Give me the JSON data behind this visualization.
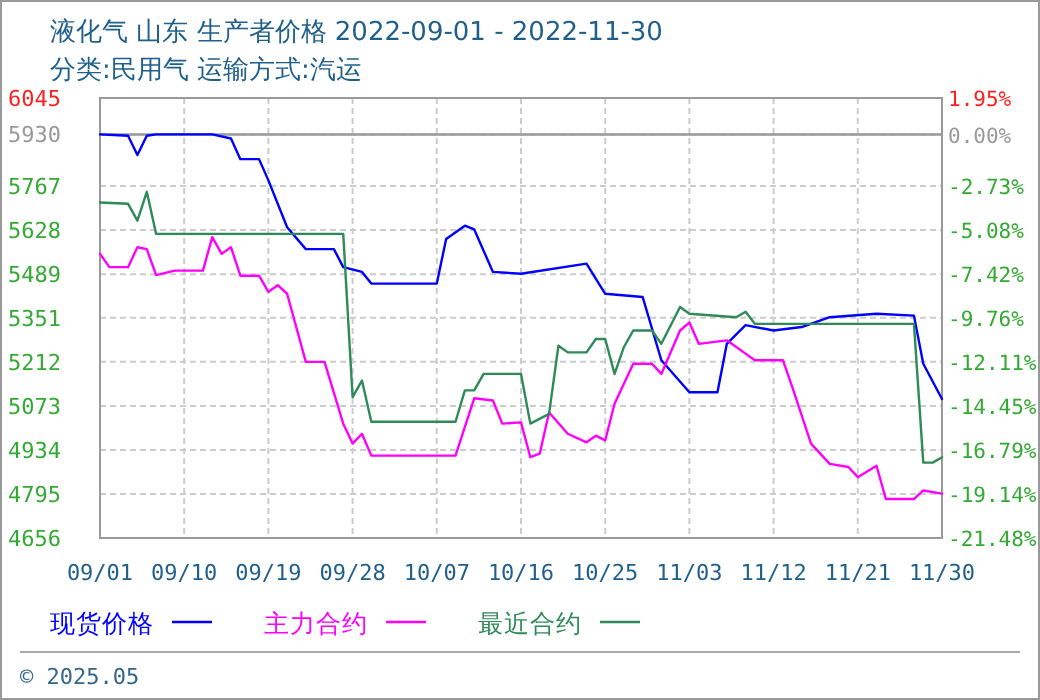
{
  "chart_data": {
    "type": "line",
    "title": "液化气 山东 生产者价格 2022-09-01 - 2022-11-30",
    "subtitle": "分类:民用气 运输方式:汽运",
    "annotations": [
      "© 2025.05"
    ],
    "xlim": [
      "2022-09-01",
      "2022-11-30"
    ],
    "xticks": [
      {
        "value": "2022-09-01",
        "label": "09/01"
      },
      {
        "value": "2022-09-10",
        "label": "09/10"
      },
      {
        "value": "2022-09-19",
        "label": "09/19"
      },
      {
        "value": "2022-09-28",
        "label": "09/28"
      },
      {
        "value": "2022-10-07",
        "label": "10/07"
      },
      {
        "value": "2022-10-16",
        "label": "10/16"
      },
      {
        "value": "2022-10-25",
        "label": "10/25"
      },
      {
        "value": "2022-11-03",
        "label": "11/03"
      },
      {
        "value": "2022-11-12",
        "label": "11/12"
      },
      {
        "value": "2022-11-21",
        "label": "11/21"
      },
      {
        "value": "2022-11-30",
        "label": "11/30"
      }
    ],
    "ylim": [
      4656,
      6045
    ],
    "yticks": [
      4656,
      4795,
      4934,
      5073,
      5212,
      5351,
      5489,
      5628,
      5767,
      5930,
      6045
    ],
    "y2lim": [
      -21.48,
      1.95
    ],
    "y2ticks": [
      {
        "value": -21.48,
        "label": "-21.48%"
      },
      {
        "value": -19.14,
        "label": "-19.14%"
      },
      {
        "value": -16.79,
        "label": "-16.79%"
      },
      {
        "value": -14.45,
        "label": "-14.45%"
      },
      {
        "value": -12.11,
        "label": "-12.11%"
      },
      {
        "value": -9.76,
        "label": "-9.76%"
      },
      {
        "value": -7.42,
        "label": "-7.42%"
      },
      {
        "value": -5.08,
        "label": "-5.08%"
      },
      {
        "value": -2.73,
        "label": "-2.73%"
      },
      {
        "value": 0,
        "label": "0.00%"
      },
      {
        "value": 1.95,
        "label": "1.95%"
      }
    ],
    "ref_lines": [
      {
        "axis": "y",
        "value": 5930,
        "color": "#999999"
      }
    ],
    "grid": true,
    "legend": "bottom",
    "series": [
      {
        "name": "现货价格",
        "color": "#0000ff",
        "x": [
          "2022-09-01",
          "2022-09-04",
          "2022-09-05",
          "2022-09-06",
          "2022-09-07",
          "2022-09-13",
          "2022-09-15",
          "2022-09-16",
          "2022-09-18",
          "2022-09-19",
          "2022-09-21",
          "2022-09-23",
          "2022-09-26",
          "2022-09-27",
          "2022-09-29",
          "2022-09-30",
          "2022-10-07",
          "2022-10-08",
          "2022-10-10",
          "2022-10-11",
          "2022-10-13",
          "2022-10-16",
          "2022-10-23",
          "2022-10-25",
          "2022-10-29",
          "2022-10-31",
          "2022-11-03",
          "2022-11-06",
          "2022-11-07",
          "2022-11-09",
          "2022-11-12",
          "2022-11-15",
          "2022-11-18",
          "2022-11-23",
          "2022-11-27",
          "2022-11-28",
          "2022-11-30"
        ],
        "values": [
          5930,
          5926,
          5865,
          5926,
          5930,
          5930,
          5917,
          5852,
          5852,
          5785,
          5637,
          5568,
          5568,
          5511,
          5496,
          5459,
          5459,
          5600,
          5642,
          5630,
          5496,
          5490,
          5522,
          5427,
          5417,
          5217,
          5116,
          5116,
          5269,
          5328,
          5311,
          5322,
          5353,
          5364,
          5358,
          5206,
          5095
        ]
      },
      {
        "name": "主力合约",
        "color": "#ff00ff",
        "x": [
          "2022-09-01",
          "2022-09-02",
          "2022-09-04",
          "2022-09-05",
          "2022-09-06",
          "2022-09-07",
          "2022-09-09",
          "2022-09-12",
          "2022-09-13",
          "2022-09-14",
          "2022-09-15",
          "2022-09-16",
          "2022-09-18",
          "2022-09-19",
          "2022-09-20",
          "2022-09-21",
          "2022-09-23",
          "2022-09-25",
          "2022-09-27",
          "2022-09-28",
          "2022-09-29",
          "2022-09-30",
          "2022-10-09",
          "2022-10-11",
          "2022-10-13",
          "2022-10-14",
          "2022-10-16",
          "2022-10-17",
          "2022-10-18",
          "2022-10-19",
          "2022-10-21",
          "2022-10-23",
          "2022-10-24",
          "2022-10-25",
          "2022-10-26",
          "2022-10-28",
          "2022-10-30",
          "2022-10-31",
          "2022-11-02",
          "2022-11-03",
          "2022-11-04",
          "2022-11-07",
          "2022-11-09",
          "2022-11-10",
          "2022-11-13",
          "2022-11-14",
          "2022-11-16",
          "2022-11-18",
          "2022-11-20",
          "2022-11-21",
          "2022-11-23",
          "2022-11-24",
          "2022-11-27",
          "2022-11-28",
          "2022-11-30"
        ],
        "values": [
          5553,
          5511,
          5511,
          5574,
          5568,
          5486,
          5500,
          5500,
          5606,
          5553,
          5574,
          5484,
          5484,
          5433,
          5454,
          5427,
          5212,
          5212,
          5017,
          4954,
          4985,
          4916,
          4916,
          5097,
          5090,
          5017,
          5021,
          4911,
          4922,
          5052,
          4985,
          4958,
          4979,
          4964,
          5080,
          5206,
          5206,
          5174,
          5311,
          5336,
          5269,
          5280,
          5238,
          5217,
          5217,
          5132,
          4954,
          4890,
          4880,
          4848,
          4884,
          4779,
          4779,
          4806,
          4796
        ]
      },
      {
        "name": "最近合约",
        "color": "#2e8b57",
        "x": [
          "2022-09-01",
          "2022-09-04",
          "2022-09-05",
          "2022-09-06",
          "2022-09-07",
          "2022-09-27",
          "2022-09-28",
          "2022-09-29",
          "2022-09-30",
          "2022-10-09",
          "2022-10-10",
          "2022-10-11",
          "2022-10-12",
          "2022-10-16",
          "2022-10-17",
          "2022-10-19",
          "2022-10-20",
          "2022-10-21",
          "2022-10-23",
          "2022-10-24",
          "2022-10-25",
          "2022-10-26",
          "2022-10-27",
          "2022-10-28",
          "2022-10-30",
          "2022-10-31",
          "2022-11-02",
          "2022-11-03",
          "2022-11-08",
          "2022-11-09",
          "2022-11-10",
          "2022-11-27",
          "2022-11-28",
          "2022-11-29",
          "2022-11-30"
        ],
        "values": [
          5715,
          5711,
          5658,
          5749,
          5616,
          5616,
          5101,
          5153,
          5023,
          5023,
          5122,
          5122,
          5174,
          5174,
          5017,
          5048,
          5263,
          5242,
          5242,
          5284,
          5284,
          5174,
          5259,
          5311,
          5311,
          5269,
          5385,
          5364,
          5353,
          5370,
          5332,
          5332,
          4894,
          4894,
          4911
        ]
      }
    ]
  }
}
